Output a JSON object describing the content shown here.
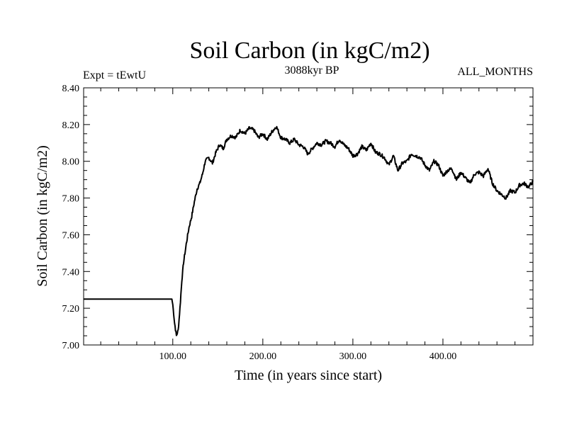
{
  "chart_data": {
    "type": "line",
    "title": "Soil Carbon (in kgC/m2)",
    "subtitle_left": "Expt = tEwtU",
    "subtitle_center": "3088kyr BP",
    "subtitle_right": "ALL_MONTHS",
    "xlabel": "Time (in years since start)",
    "ylabel": "Soil Carbon (in kgC/m2)",
    "xlim": [
      1,
      500
    ],
    "ylim": [
      7.0,
      8.4
    ],
    "x_ticks": [
      100,
      200,
      300,
      400
    ],
    "x_tick_labels": [
      "100.00",
      "200.00",
      "300.00",
      "400.00"
    ],
    "y_ticks": [
      7.0,
      7.2,
      7.4,
      7.6,
      7.8,
      8.0,
      8.2,
      8.4
    ],
    "y_tick_labels": [
      "7.00",
      "7.20",
      "7.40",
      "7.60",
      "7.80",
      "8.00",
      "8.20",
      "8.40"
    ],
    "grid": false,
    "series": [
      {
        "name": "Soil Carbon",
        "color": "#000000",
        "x": [
          1,
          99,
          100,
          102,
          104,
          106,
          108,
          110,
          112,
          115,
          118,
          121,
          124,
          127,
          130,
          133,
          136,
          140,
          144,
          148,
          152,
          156,
          160,
          165,
          170,
          175,
          180,
          185,
          190,
          195,
          200,
          205,
          210,
          215,
          220,
          225,
          230,
          235,
          240,
          245,
          250,
          255,
          260,
          265,
          270,
          275,
          280,
          285,
          290,
          295,
          300,
          305,
          310,
          315,
          320,
          325,
          330,
          335,
          340,
          345,
          350,
          355,
          360,
          365,
          370,
          375,
          380,
          385,
          390,
          395,
          400,
          405,
          410,
          415,
          420,
          425,
          430,
          435,
          440,
          445,
          450,
          455,
          460,
          465,
          470,
          475,
          480,
          485,
          490,
          495,
          500
        ],
        "values": [
          7.25,
          7.25,
          7.22,
          7.12,
          7.05,
          7.08,
          7.2,
          7.35,
          7.45,
          7.55,
          7.64,
          7.7,
          7.78,
          7.85,
          7.88,
          7.93,
          8.0,
          8.02,
          7.99,
          8.05,
          8.09,
          8.07,
          8.12,
          8.14,
          8.13,
          8.17,
          8.15,
          8.18,
          8.17,
          8.13,
          8.15,
          8.12,
          8.16,
          8.19,
          8.13,
          8.12,
          8.1,
          8.12,
          8.09,
          8.08,
          8.04,
          8.07,
          8.1,
          8.09,
          8.11,
          8.1,
          8.08,
          8.12,
          8.09,
          8.07,
          8.03,
          8.04,
          8.08,
          8.06,
          8.1,
          8.05,
          8.04,
          8.02,
          7.98,
          8.03,
          7.95,
          7.99,
          8.0,
          8.04,
          8.03,
          8.02,
          7.98,
          7.95,
          8.0,
          7.98,
          7.92,
          7.95,
          7.96,
          7.9,
          7.94,
          7.91,
          7.88,
          7.93,
          7.94,
          7.92,
          7.96,
          7.88,
          7.84,
          7.82,
          7.8,
          7.84,
          7.83,
          7.87,
          7.88,
          7.86,
          7.89
        ]
      }
    ]
  }
}
